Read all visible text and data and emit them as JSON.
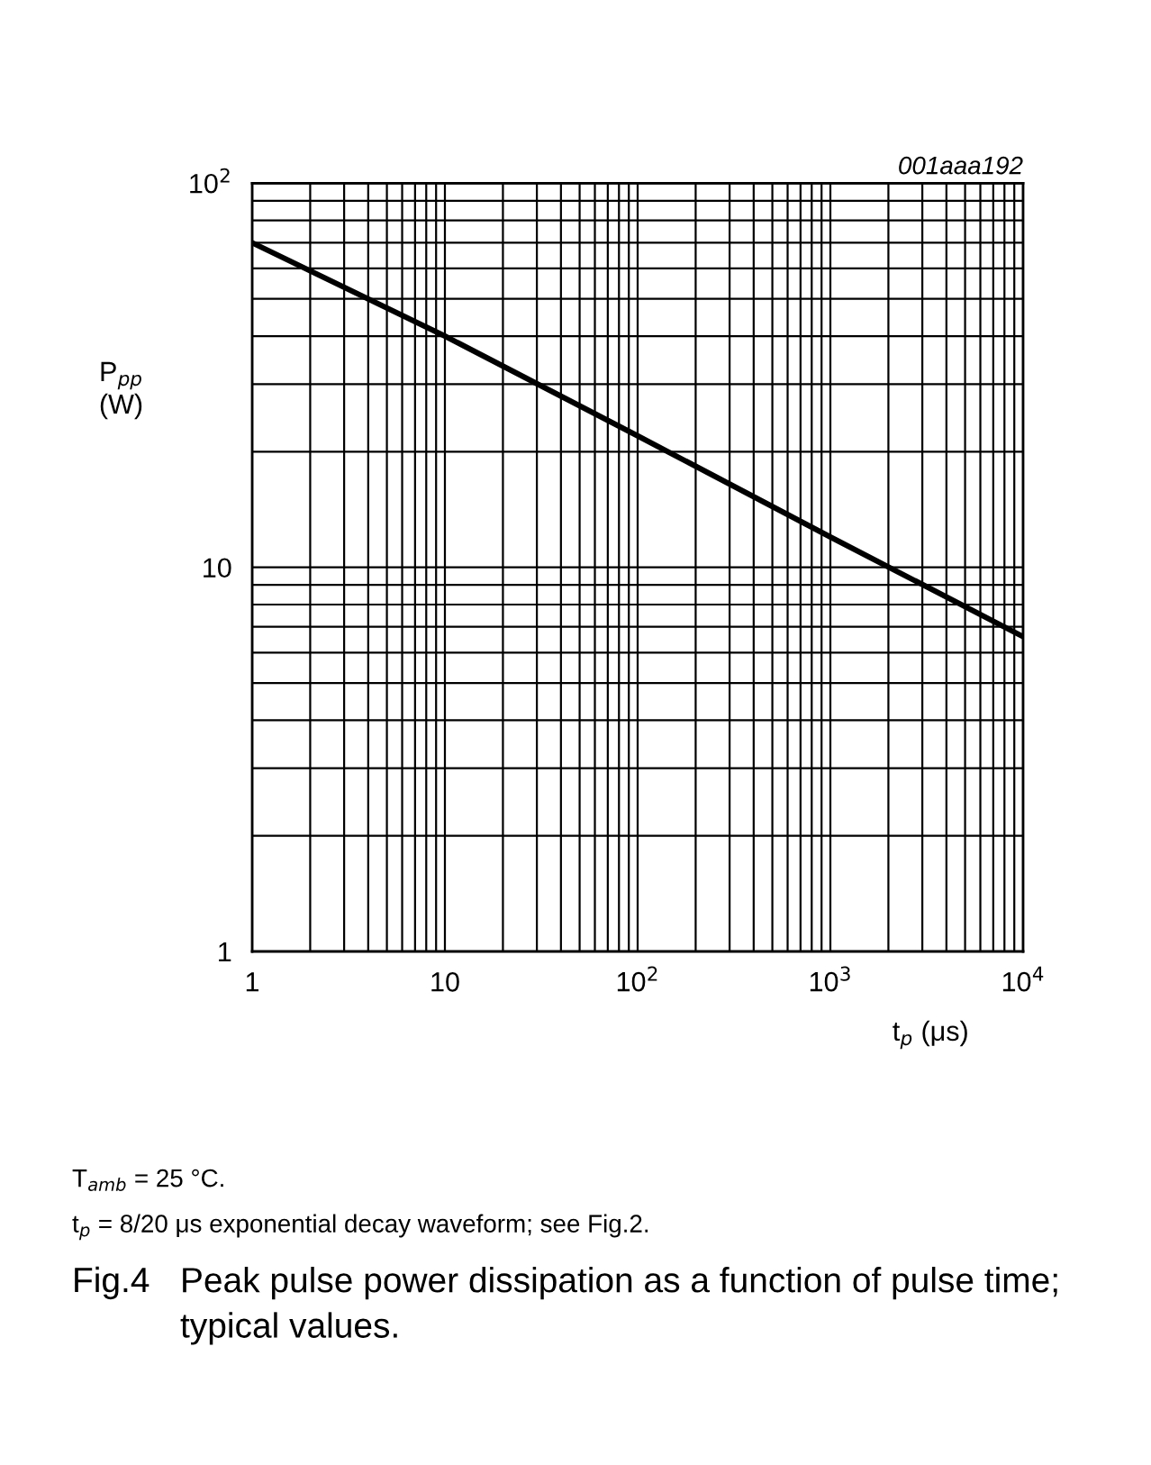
{
  "chart_data": {
    "type": "line",
    "title": "Peak pulse power dissipation as a function of pulse time; typical values.",
    "xlabel": "t$_{p}$ (μs)",
    "ylabel": "P$_{pp}$\n(W)",
    "annotations": [
      "001aaa192",
      "T$_{amb}$ = 25 °C.",
      "t$_{p}$ = 8/20 μs exponential decay waveform; see Fig.2.",
      "Fig.4"
    ],
    "x": [
      1,
      10,
      100,
      1000,
      10000
    ],
    "series": [
      {
        "color": "#000000",
        "values": [
          70,
          40,
          22,
          12,
          6.6
        ]
      }
    ],
    "log": "xy",
    "xlim": [
      1,
      10000
    ],
    "ylim": [
      1,
      100
    ],
    "xticks": [
      1,
      10,
      {
        "value": 100,
        "label": "10$^{2}$"
      },
      {
        "value": 1000,
        "label": "10$^{3}$"
      },
      {
        "value": 10000,
        "label": "10$^{4}$"
      }
    ],
    "yticks": [
      1,
      10,
      {
        "value": 100,
        "label": "10$^{2}$"
      }
    ],
    "grid": true,
    "marker": "none",
    "line_style": "solid"
  }
}
